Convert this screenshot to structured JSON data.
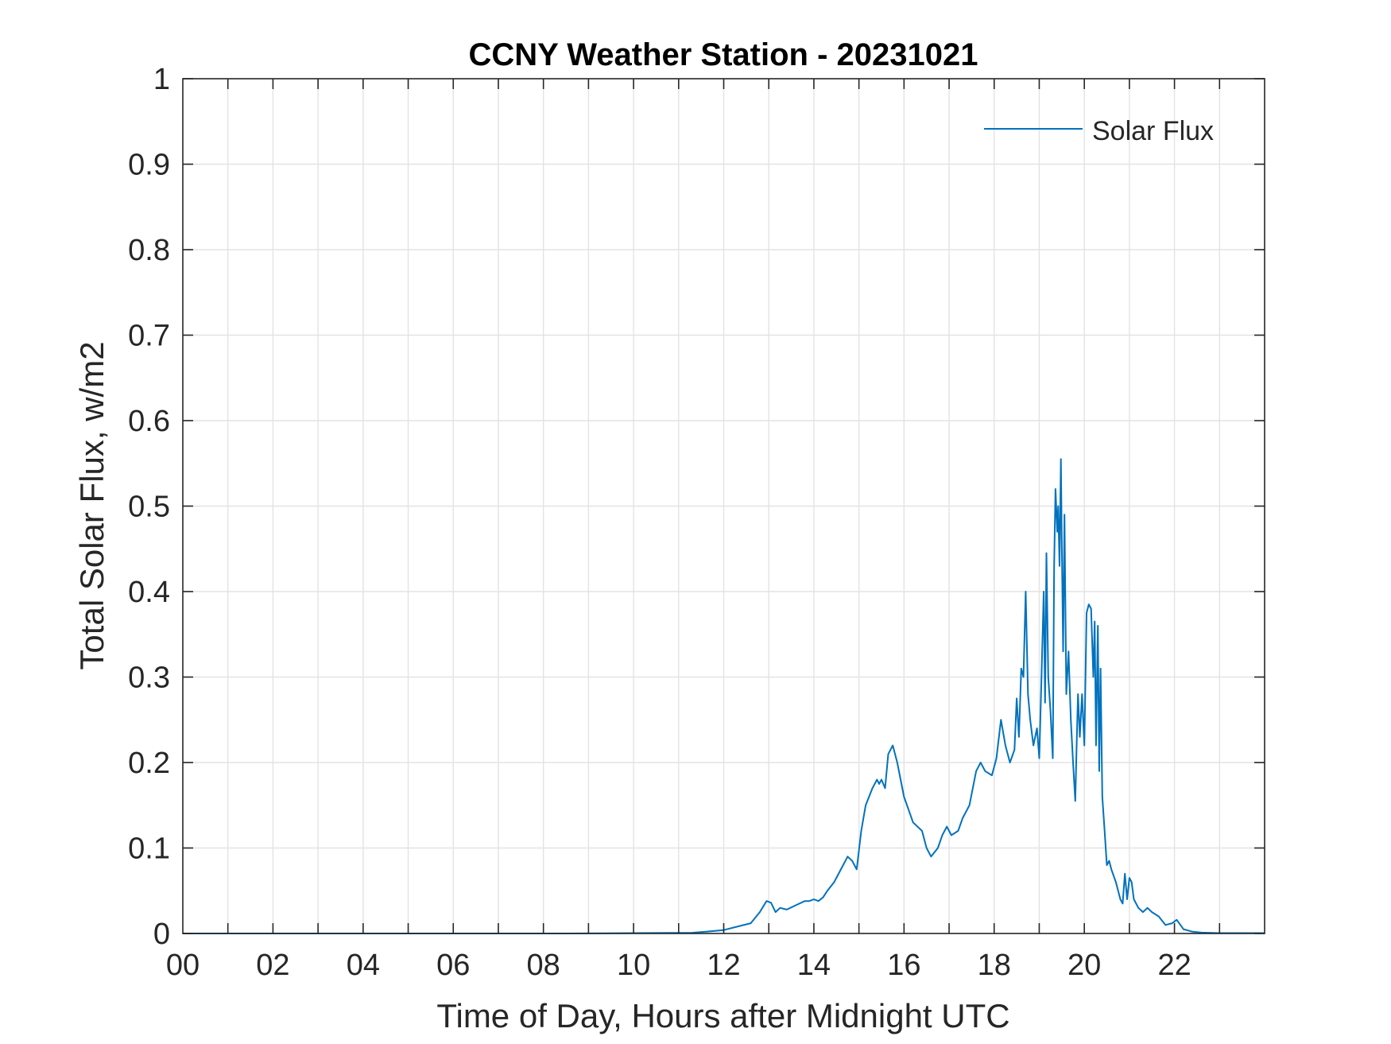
{
  "chart_data": {
    "type": "line",
    "title": "CCNY Weather Station - 20231021",
    "xlabel": "Time of Day, Hours after Midnight UTC",
    "ylabel": "Total Solar Flux, w/m2",
    "xlim": [
      0,
      24
    ],
    "ylim": [
      0,
      1
    ],
    "grid": true,
    "legend_position": "top-right",
    "x_ticks": [
      0,
      2,
      4,
      6,
      8,
      10,
      12,
      14,
      16,
      18,
      20,
      22
    ],
    "x_tick_labels": [
      "00",
      "02",
      "04",
      "06",
      "08",
      "10",
      "12",
      "14",
      "16",
      "18",
      "20",
      "22"
    ],
    "x_grid_step": 1,
    "y_ticks": [
      0,
      0.1,
      0.2,
      0.3,
      0.4,
      0.5,
      0.6,
      0.7,
      0.8,
      0.9,
      1
    ],
    "y_tick_labels": [
      "0",
      "0.1",
      "0.2",
      "0.3",
      "0.4",
      "0.5",
      "0.6",
      "0.7",
      "0.8",
      "0.9",
      "1"
    ],
    "colors": {
      "series": "#0072BD",
      "axis": "#262626",
      "grid": "#e3e3e3"
    },
    "series": [
      {
        "name": "Solar Flux",
        "x": [
          0,
          8.5,
          10,
          11.3,
          11.6,
          12.0,
          12.3,
          12.6,
          12.8,
          12.95,
          13.05,
          13.15,
          13.25,
          13.4,
          13.6,
          13.8,
          13.9,
          14.0,
          14.1,
          14.2,
          14.3,
          14.45,
          14.6,
          14.75,
          14.85,
          14.95,
          15.05,
          15.15,
          15.3,
          15.4,
          15.45,
          15.5,
          15.58,
          15.65,
          15.75,
          15.85,
          16.0,
          16.2,
          16.4,
          16.5,
          16.6,
          16.75,
          16.85,
          16.95,
          17.05,
          17.2,
          17.3,
          17.45,
          17.6,
          17.7,
          17.8,
          17.95,
          18.05,
          18.15,
          18.25,
          18.35,
          18.45,
          18.5,
          18.55,
          18.6,
          18.65,
          18.7,
          18.75,
          18.8,
          18.87,
          18.95,
          19.0,
          19.05,
          19.1,
          19.13,
          19.16,
          19.2,
          19.25,
          19.3,
          19.33,
          19.36,
          19.4,
          19.42,
          19.45,
          19.48,
          19.5,
          19.53,
          19.56,
          19.6,
          19.65,
          19.7,
          19.75,
          19.8,
          19.83,
          19.86,
          19.9,
          19.95,
          20.0,
          20.05,
          20.1,
          20.15,
          20.2,
          20.23,
          20.26,
          20.3,
          20.33,
          20.36,
          20.4,
          20.45,
          20.5,
          20.55,
          20.6,
          20.7,
          20.8,
          20.85,
          20.9,
          20.95,
          21.0,
          21.05,
          21.1,
          21.2,
          21.3,
          21.4,
          21.5,
          21.65,
          21.8,
          21.95,
          22.05,
          22.2,
          22.4,
          22.6,
          23.0,
          23.98
        ],
        "values": [
          0,
          0,
          0.0005,
          0.0008,
          0.002,
          0.004,
          0.008,
          0.012,
          0.025,
          0.038,
          0.036,
          0.025,
          0.03,
          0.028,
          0.033,
          0.038,
          0.038,
          0.04,
          0.038,
          0.042,
          0.05,
          0.06,
          0.075,
          0.09,
          0.085,
          0.075,
          0.12,
          0.15,
          0.17,
          0.18,
          0.175,
          0.18,
          0.17,
          0.21,
          0.22,
          0.2,
          0.16,
          0.13,
          0.12,
          0.1,
          0.09,
          0.1,
          0.115,
          0.125,
          0.115,
          0.12,
          0.135,
          0.15,
          0.19,
          0.2,
          0.19,
          0.185,
          0.205,
          0.25,
          0.22,
          0.2,
          0.215,
          0.275,
          0.23,
          0.31,
          0.3,
          0.4,
          0.28,
          0.25,
          0.22,
          0.24,
          0.205,
          0.3,
          0.4,
          0.27,
          0.445,
          0.3,
          0.26,
          0.205,
          0.43,
          0.52,
          0.47,
          0.5,
          0.43,
          0.555,
          0.46,
          0.33,
          0.49,
          0.28,
          0.33,
          0.25,
          0.2,
          0.155,
          0.22,
          0.28,
          0.23,
          0.28,
          0.22,
          0.375,
          0.385,
          0.38,
          0.3,
          0.365,
          0.22,
          0.36,
          0.19,
          0.31,
          0.16,
          0.12,
          0.08,
          0.085,
          0.075,
          0.06,
          0.04,
          0.035,
          0.07,
          0.04,
          0.065,
          0.06,
          0.04,
          0.03,
          0.025,
          0.03,
          0.025,
          0.02,
          0.01,
          0.012,
          0.016,
          0.005,
          0.002,
          0.001,
          0.0005,
          0.0005
        ]
      }
    ]
  }
}
